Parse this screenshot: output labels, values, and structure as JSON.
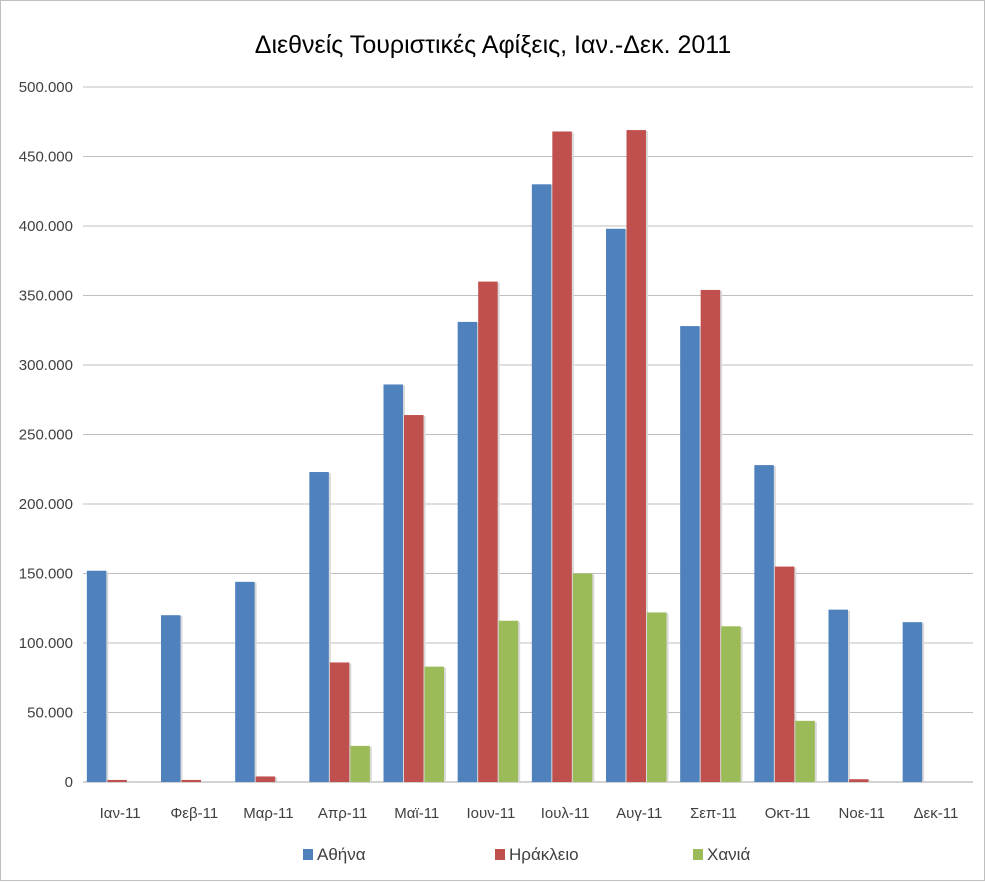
{
  "chart_data": {
    "type": "bar",
    "title": "Διεθνείς Τουριστικές Αφίξεις, Ιαν.-Δεκ. 2011",
    "xlabel": "",
    "ylabel": "",
    "ylim": [
      0,
      500000
    ],
    "ytick_step": 50000,
    "ytick_labels": [
      "0",
      "50.000",
      "100.000",
      "150.000",
      "200.000",
      "250.000",
      "300.000",
      "350.000",
      "400.000",
      "450.000",
      "500.000"
    ],
    "grid": true,
    "legend_position": "bottom",
    "categories": [
      "Ιαν-11",
      "Φεβ-11",
      "Μαρ-11",
      "Απρ-11",
      "Μαϊ-11",
      "Ιουν-11",
      "Ιουλ-11",
      "Αυγ-11",
      "Σεπ-11",
      "Οκτ-11",
      "Νοε-11",
      "Δεκ-11"
    ],
    "series": [
      {
        "name": "Αθήνα",
        "color": "#4f81bd",
        "values": [
          152000,
          120000,
          144000,
          223000,
          286000,
          331000,
          430000,
          398000,
          328000,
          228000,
          124000,
          115000
        ]
      },
      {
        "name": "Ηράκλειο",
        "color": "#c0504d",
        "values": [
          1500,
          1500,
          4000,
          86000,
          264000,
          360000,
          468000,
          469000,
          354000,
          155000,
          2000,
          0
        ]
      },
      {
        "name": "Χανιά",
        "color": "#9bbb59",
        "values": [
          0,
          0,
          0,
          26000,
          83000,
          116000,
          150000,
          122000,
          112000,
          44000,
          0,
          0
        ]
      }
    ]
  }
}
